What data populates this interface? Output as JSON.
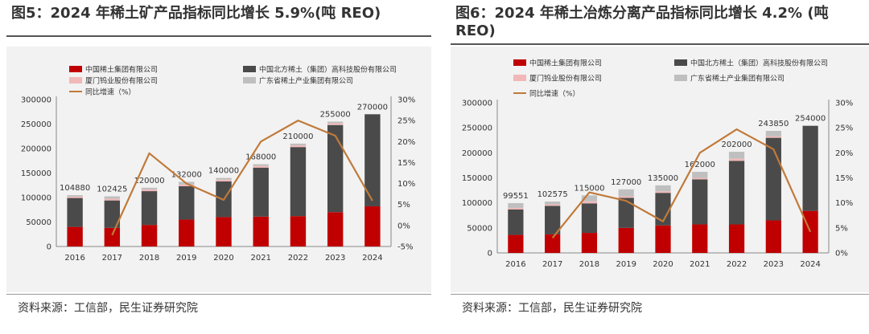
{
  "figures": [
    {
      "title": "图5：2024 年稀土矿产品指标同比增长 5.9%(吨 REO)",
      "source": "资料来源：工信部，民生证券研究院",
      "chart_data": {
        "type": "bar",
        "stacked": true,
        "categories": [
          "2016",
          "2017",
          "2018",
          "2019",
          "2020",
          "2021",
          "2022",
          "2023",
          "2024"
        ],
        "series": [
          {
            "name": "中国稀土集团有限公司",
            "color": "#c00000",
            "values": [
              40000,
              38000,
              44000,
              55000,
              60000,
              61000,
              62000,
              70000,
              82000
            ]
          },
          {
            "name": "中国北方稀土（集团）高科技股份有限公司",
            "color": "#4a4a4a",
            "values": [
              59000,
              56000,
              69000,
              68000,
              73000,
              100000,
              141000,
              178000,
              188000
            ]
          },
          {
            "name": "厦门钨业股份有限公司",
            "color": "#f2b8b8",
            "values": [
              3000,
              3400,
              3500,
              3500,
              3500,
              3500,
              3500,
              3500,
              0
            ]
          },
          {
            "name": "广东省稀土产业集团有限公司",
            "color": "#bfbfbf",
            "values": [
              2880,
              5025,
              3500,
              5500,
              3500,
              3500,
              3500,
              3500,
              0
            ]
          }
        ],
        "totals": [
          104880,
          102425,
          120000,
          132000,
          140000,
          168000,
          210000,
          255000,
          270000
        ],
        "total_label_values": [
          "104880",
          "102425",
          "120000",
          "132000",
          "140000",
          "168000",
          "210000",
          "255000",
          "270000"
        ],
        "line": {
          "name": "同比增速（%）",
          "color": "#c07a3a",
          "axis": "right",
          "values": [
            null,
            -2.3,
            17.2,
            10.0,
            6.1,
            20.0,
            25.0,
            21.4,
            5.9
          ]
        },
        "yleft_ticks": [
          "0",
          "50000",
          "100000",
          "150000",
          "200000",
          "250000",
          "300000"
        ],
        "yright_ticks": [
          "-5%",
          "0%",
          "5%",
          "10%",
          "15%",
          "20%",
          "25%",
          "30%"
        ],
        "ylim": [
          0,
          300000
        ],
        "ylim_right": [
          -5,
          30
        ],
        "grid": false,
        "legend_position": "top"
      }
    },
    {
      "title": "图6：2024 年稀土冶炼分离产品指标同比增长 4.2% (吨 REO)",
      "source": "资料来源：工信部，民生证券研究院",
      "chart_data": {
        "type": "bar",
        "stacked": true,
        "categories": [
          "2016",
          "2017",
          "2018",
          "2019",
          "2020",
          "2021",
          "2022",
          "2023",
          "2024"
        ],
        "series": [
          {
            "name": "中国稀土集团有限公司",
            "color": "#c00000",
            "values": [
              36000,
              37000,
              40000,
              50000,
              55000,
              57000,
              57000,
              65000,
              84000
            ]
          },
          {
            "name": "中国北方稀土（集团）高科技股份有限公司",
            "color": "#4a4a4a",
            "values": [
              51000,
              57000,
              59000,
              60000,
              65000,
              90000,
              127000,
              165000,
              170000
            ]
          },
          {
            "name": "厦门钨业股份有限公司",
            "color": "#f2b8b8",
            "values": [
              3000,
              3000,
              4000,
              3000,
              3000,
              3000,
              4000,
              3000,
              0
            ]
          },
          {
            "name": "广东省稀土产业集团有限公司",
            "color": "#bfbfbf",
            "values": [
              9551,
              5575,
              12000,
              14000,
              12000,
              12000,
              14000,
              10850,
              0
            ]
          }
        ],
        "totals": [
          99551,
          102575,
          115000,
          127000,
          135000,
          162000,
          202000,
          243850,
          254000
        ],
        "total_label_values": [
          "99551",
          "102575",
          "115000",
          "127000",
          "135000",
          "162000",
          "202000",
          "243850",
          "254000"
        ],
        "line": {
          "name": "同比增速（%）",
          "color": "#c07a3a",
          "axis": "right",
          "values": [
            null,
            3.0,
            12.1,
            10.4,
            6.3,
            20.0,
            24.7,
            20.7,
            4.2
          ]
        },
        "yleft_ticks": [
          "0",
          "50000",
          "100000",
          "150000",
          "200000",
          "250000",
          "300000"
        ],
        "yright_ticks": [
          "0%",
          "5%",
          "10%",
          "15%",
          "20%",
          "25%",
          "30%"
        ],
        "ylim": [
          0,
          300000
        ],
        "ylim_right": [
          0,
          30
        ],
        "grid": false,
        "legend_position": "top"
      }
    }
  ]
}
